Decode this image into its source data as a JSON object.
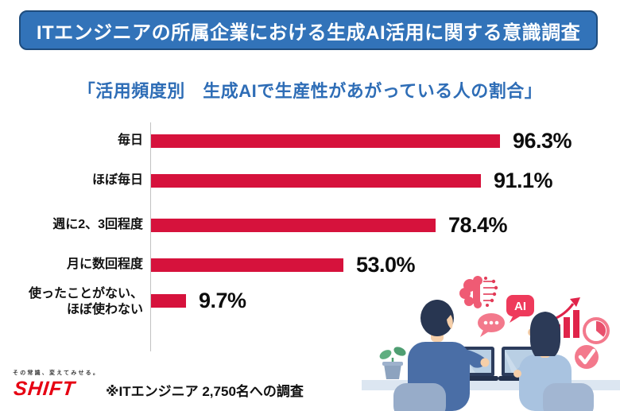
{
  "banner": {
    "title": "ITエンジニアの所属企業における生成AI活用に関する意識調査"
  },
  "chart_title": "「活用頻度別　生成AIで生産性があがっている人の割合」",
  "chart_data": {
    "type": "bar",
    "orientation": "horizontal",
    "title": "活用頻度別 生成AIで生産性があがっている人の割合",
    "categories": [
      "毎日",
      "ほぼ毎日",
      "週に2、3回程度",
      "月に数回程度",
      "使ったことがない、\nほぼ使わない"
    ],
    "values": [
      96.3,
      91.1,
      78.4,
      53.0,
      9.7
    ],
    "value_labels": [
      "96.3%",
      "91.1%",
      "78.4%",
      "53.0%",
      "9.7%"
    ],
    "xlim": [
      0,
      100
    ],
    "bar_color": "#d6123c",
    "grid": false,
    "legend": false
  },
  "footer": {
    "tagline": "その常識、変えてみせる。",
    "logo": "SHIFT",
    "note": "※ITエンジニア 2,750名への調査"
  },
  "colors": {
    "banner_bg": "#3273b9",
    "banner_border": "#1e4c7d",
    "title_blue": "#2e6db6",
    "bar_red": "#d6123c",
    "shift_red": "#e60012",
    "illustration_pink": "#f3798c",
    "illustration_red": "#ee3a5b"
  },
  "illustration": {
    "description": "two IT engineers working on laptops at a desk, surrounded by AI-themed icons",
    "ai_badge_label": "AI",
    "icons": [
      "circuit-brain-icon",
      "ai-speech-bubble-icon",
      "chat-dots-icon",
      "growth-chart-icon",
      "clock-icon",
      "check-circle-icon",
      "plant-icon"
    ]
  }
}
